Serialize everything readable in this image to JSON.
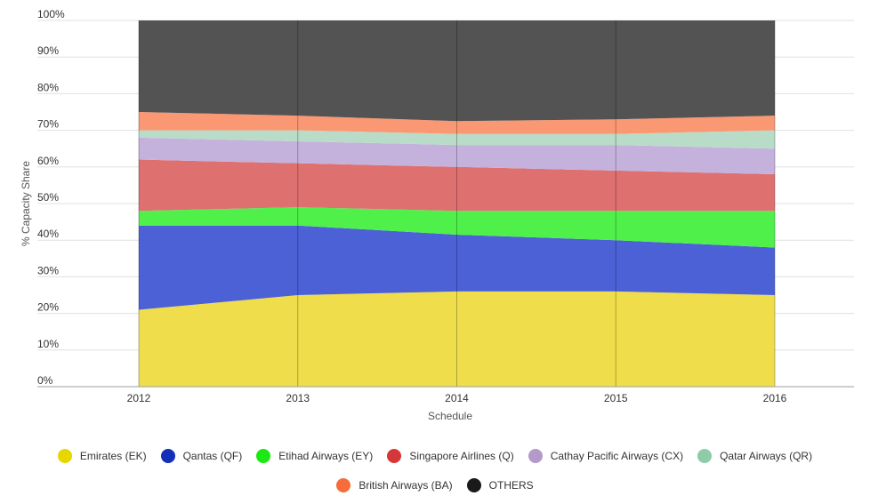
{
  "chart_data": {
    "type": "area",
    "stacked": true,
    "xlabel": "Schedule",
    "ylabel": "% Capacity Share",
    "x": [
      "2012",
      "2013",
      "2014",
      "2015",
      "2016"
    ],
    "yticks": [
      "0%",
      "10%",
      "20%",
      "30%",
      "40%",
      "50%",
      "60%",
      "70%",
      "80%",
      "90%",
      "100%"
    ],
    "ylim": [
      0,
      100
    ],
    "grid": true,
    "legend_position": "bottom",
    "series": [
      {
        "name": "Emirates (EK)",
        "color": "#f0dd4b",
        "values": [
          21,
          25,
          26,
          26,
          25
        ]
      },
      {
        "name": "Qantas (QF)",
        "color": "#4c61d6",
        "values": [
          23,
          19,
          15.5,
          14,
          13
        ]
      },
      {
        "name": "Etihad Airways (EY)",
        "color": "#4ff04a",
        "values": [
          4,
          5,
          6.5,
          8,
          10
        ]
      },
      {
        "name": "Singapore Airlines (Q)",
        "color": "#de7070",
        "values": [
          14,
          12,
          12,
          11,
          10
        ]
      },
      {
        "name": "Cathay Pacific Airways (CX)",
        "color": "#c4b2dd",
        "values": [
          6,
          6,
          6,
          7,
          7
        ]
      },
      {
        "name": "Qatar Airways (QR)",
        "color": "#b8dcc8",
        "values": [
          2,
          3,
          3,
          3,
          5
        ]
      },
      {
        "name": "British Airways (BA)",
        "color": "#fa9874",
        "values": [
          5,
          4,
          3.5,
          4,
          4
        ]
      },
      {
        "name": "OTHERS",
        "color": "#535353",
        "values": [
          25,
          26,
          27.5,
          27,
          26
        ]
      }
    ]
  },
  "legend": {
    "rows": [
      [
        {
          "label": "Emirates (EK)",
          "color": "#e8d600"
        },
        {
          "label": "Qantas (QF)",
          "color": "#1230b8"
        },
        {
          "label": "Etihad Airways (EY)",
          "color": "#1ce813"
        },
        {
          "label": "Singapore Airlines (Q)",
          "color": "#d43838"
        },
        {
          "label": "Cathay Pacific Airways (CX)",
          "color": "#b29acb"
        },
        {
          "label": "Qatar Airways (QR)",
          "color": "#8ecba7"
        }
      ],
      [
        {
          "label": "British Airways (BA)",
          "color": "#f66d3b"
        },
        {
          "label": "OTHERS",
          "color": "#1a1a1a"
        }
      ]
    ]
  }
}
